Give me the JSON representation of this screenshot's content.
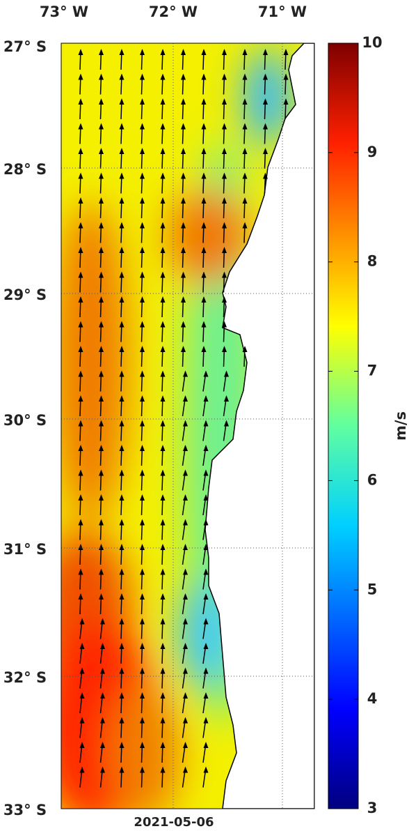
{
  "map": {
    "lon_labels": [
      "73° W",
      "72° W",
      "71° W"
    ],
    "lat_labels": [
      "27° S",
      "28° S",
      "29° S",
      "30° S",
      "31° S",
      "32° S",
      "33° S"
    ],
    "date": "2021-05-06"
  },
  "colorbar": {
    "label": "m/s",
    "range": [
      3,
      10
    ],
    "ticks": [
      3,
      4,
      5,
      6,
      7,
      8,
      9,
      10
    ]
  }
}
